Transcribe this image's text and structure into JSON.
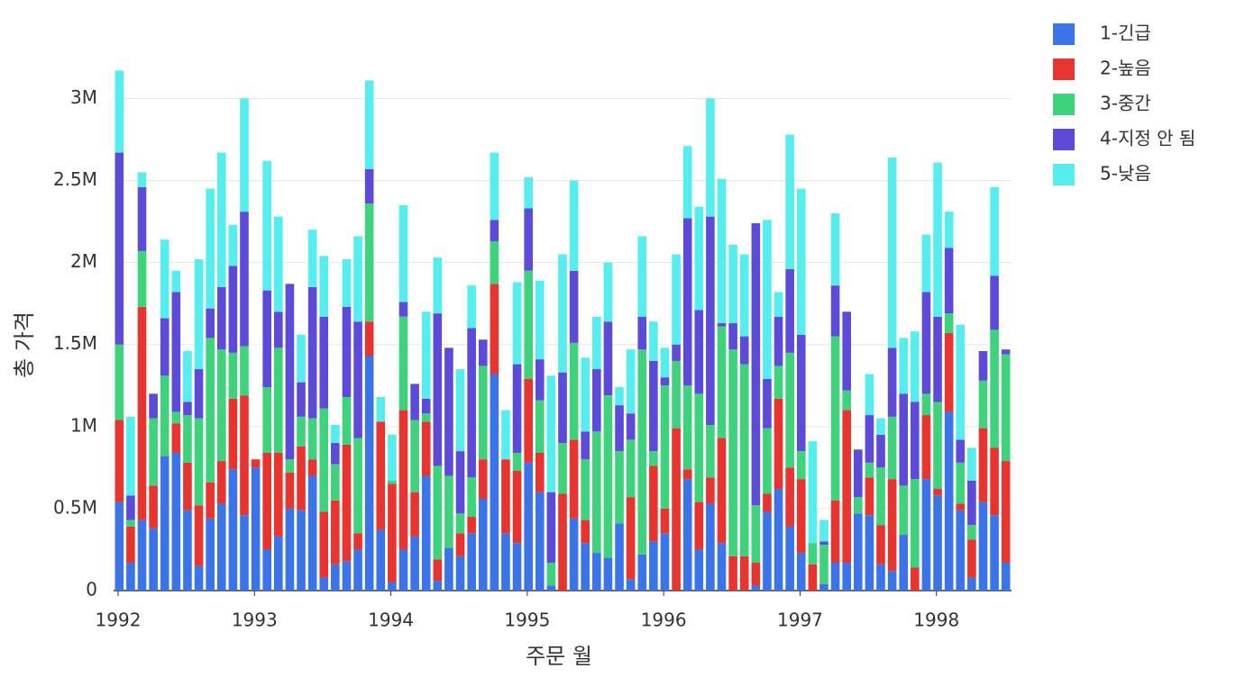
{
  "chart_data": {
    "type": "stacked_bar",
    "x_label": "주문 월",
    "y_label": "총 가격",
    "categories": [
      "1992",
      null,
      null,
      null,
      null,
      null,
      null,
      null,
      null,
      null,
      null,
      null,
      "1993",
      null,
      null,
      null,
      null,
      null,
      null,
      null,
      null,
      null,
      null,
      null,
      "1994",
      null,
      null,
      null,
      null,
      null,
      null,
      null,
      null,
      null,
      null,
      null,
      "1995",
      null,
      null,
      null,
      null,
      null,
      null,
      null,
      null,
      null,
      null,
      null,
      "1996",
      null,
      null,
      null,
      null,
      null,
      null,
      null,
      null,
      null,
      null,
      null,
      "1997",
      null,
      null,
      null,
      null,
      null,
      null,
      null,
      null,
      null,
      null,
      null,
      "1998",
      null,
      null,
      null,
      null,
      null,
      null
    ],
    "ylim": [
      0,
      3200000
    ],
    "yticks": [
      0,
      {
        "value": 500000,
        "label": "0.5M"
      },
      {
        "value": 1000000,
        "label": "1M"
      },
      {
        "value": 1500000,
        "label": "1.5M"
      },
      {
        "value": 2000000,
        "label": "2M"
      },
      {
        "value": 2500000,
        "label": "2.5M"
      },
      {
        "value": 3000000,
        "label": "3M"
      }
    ],
    "grid": true,
    "legend": "top-right",
    "series": [
      {
        "name": "1-긴급",
        "color": "#3b73e9",
        "values": [
          540000,
          170000,
          430000,
          380000,
          820000,
          840000,
          490000,
          150000,
          440000,
          530000,
          740000,
          460000,
          750000,
          250000,
          330000,
          500000,
          490000,
          700000,
          80000,
          160000,
          180000,
          250000,
          1430000,
          370000,
          50000,
          250000,
          330000,
          700000,
          60000,
          260000,
          210000,
          350000,
          560000,
          1320000,
          350000,
          290000,
          780000,
          600000,
          30000,
          0,
          440000,
          290000,
          230000,
          200000,
          410000,
          70000,
          220000,
          300000,
          350000,
          0,
          680000,
          250000,
          530000,
          290000,
          0,
          0,
          30000,
          480000,
          620000,
          390000,
          230000,
          0,
          40000,
          170000,
          170000,
          470000,
          460000,
          160000,
          120000,
          340000,
          0,
          680000,
          580000,
          1090000,
          490000,
          80000,
          540000,
          460000,
          170000
        ]
      },
      {
        "name": "2-높음",
        "color": "#e8342f",
        "values": [
          500000,
          220000,
          1300000,
          260000,
          0,
          180000,
          290000,
          370000,
          220000,
          260000,
          430000,
          730000,
          50000,
          590000,
          510000,
          220000,
          390000,
          100000,
          400000,
          390000,
          710000,
          100000,
          210000,
          660000,
          600000,
          850000,
          270000,
          330000,
          130000,
          0,
          140000,
          100000,
          240000,
          550000,
          450000,
          440000,
          510000,
          240000,
          0,
          590000,
          480000,
          140000,
          0,
          0,
          0,
          500000,
          0,
          460000,
          150000,
          990000,
          60000,
          290000,
          160000,
          640000,
          210000,
          210000,
          140000,
          110000,
          550000,
          360000,
          450000,
          160000,
          0,
          380000,
          930000,
          0,
          230000,
          240000,
          560000,
          0,
          140000,
          390000,
          40000,
          480000,
          40000,
          230000,
          450000,
          410000,
          620000
        ]
      },
      {
        "name": "3-중간",
        "color": "#3dd27b",
        "values": [
          460000,
          40000,
          340000,
          410000,
          490000,
          70000,
          290000,
          530000,
          880000,
          680000,
          280000,
          300000,
          0,
          400000,
          640000,
          80000,
          180000,
          250000,
          630000,
          220000,
          290000,
          580000,
          720000,
          0,
          20000,
          570000,
          440000,
          50000,
          570000,
          440000,
          120000,
          240000,
          570000,
          260000,
          0,
          110000,
          660000,
          320000,
          140000,
          310000,
          590000,
          370000,
          740000,
          990000,
          440000,
          350000,
          1250000,
          90000,
          750000,
          410000,
          510000,
          660000,
          320000,
          680000,
          1260000,
          1170000,
          350000,
          400000,
          200000,
          700000,
          170000,
          130000,
          240000,
          1000000,
          120000,
          100000,
          90000,
          350000,
          380000,
          300000,
          540000,
          130000,
          530000,
          120000,
          250000,
          90000,
          290000,
          720000,
          650000
        ]
      },
      {
        "name": "4-지정 안 됨",
        "color": "#5c4bd9",
        "values": [
          1170000,
          150000,
          390000,
          150000,
          350000,
          730000,
          80000,
          300000,
          180000,
          380000,
          530000,
          820000,
          0,
          590000,
          220000,
          1070000,
          210000,
          800000,
          560000,
          130000,
          550000,
          710000,
          210000,
          0,
          0,
          90000,
          220000,
          90000,
          930000,
          780000,
          380000,
          910000,
          160000,
          130000,
          0,
          540000,
          380000,
          250000,
          430000,
          430000,
          440000,
          170000,
          380000,
          450000,
          280000,
          160000,
          200000,
          550000,
          50000,
          100000,
          1020000,
          510000,
          1270000,
          20000,
          160000,
          170000,
          1720000,
          300000,
          300000,
          510000,
          710000,
          0,
          20000,
          310000,
          480000,
          290000,
          290000,
          200000,
          420000,
          560000,
          470000,
          620000,
          520000,
          400000,
          140000,
          270000,
          180000,
          330000,
          30000
        ]
      },
      {
        "name": "5-낮음",
        "color": "#55eded",
        "values": [
          500000,
          480000,
          90000,
          0,
          480000,
          130000,
          310000,
          670000,
          730000,
          820000,
          250000,
          690000,
          0,
          790000,
          580000,
          0,
          290000,
          350000,
          370000,
          110000,
          290000,
          520000,
          540000,
          150000,
          280000,
          590000,
          0,
          530000,
          340000,
          0,
          500000,
          260000,
          0,
          410000,
          300000,
          500000,
          190000,
          480000,
          710000,
          720000,
          550000,
          450000,
          320000,
          360000,
          110000,
          390000,
          490000,
          240000,
          180000,
          550000,
          440000,
          630000,
          720000,
          880000,
          480000,
          500000,
          0,
          970000,
          150000,
          820000,
          890000,
          620000,
          130000,
          440000,
          0,
          0,
          250000,
          100000,
          1160000,
          340000,
          430000,
          350000,
          940000,
          220000,
          700000,
          200000,
          0,
          540000,
          0
        ]
      }
    ]
  }
}
